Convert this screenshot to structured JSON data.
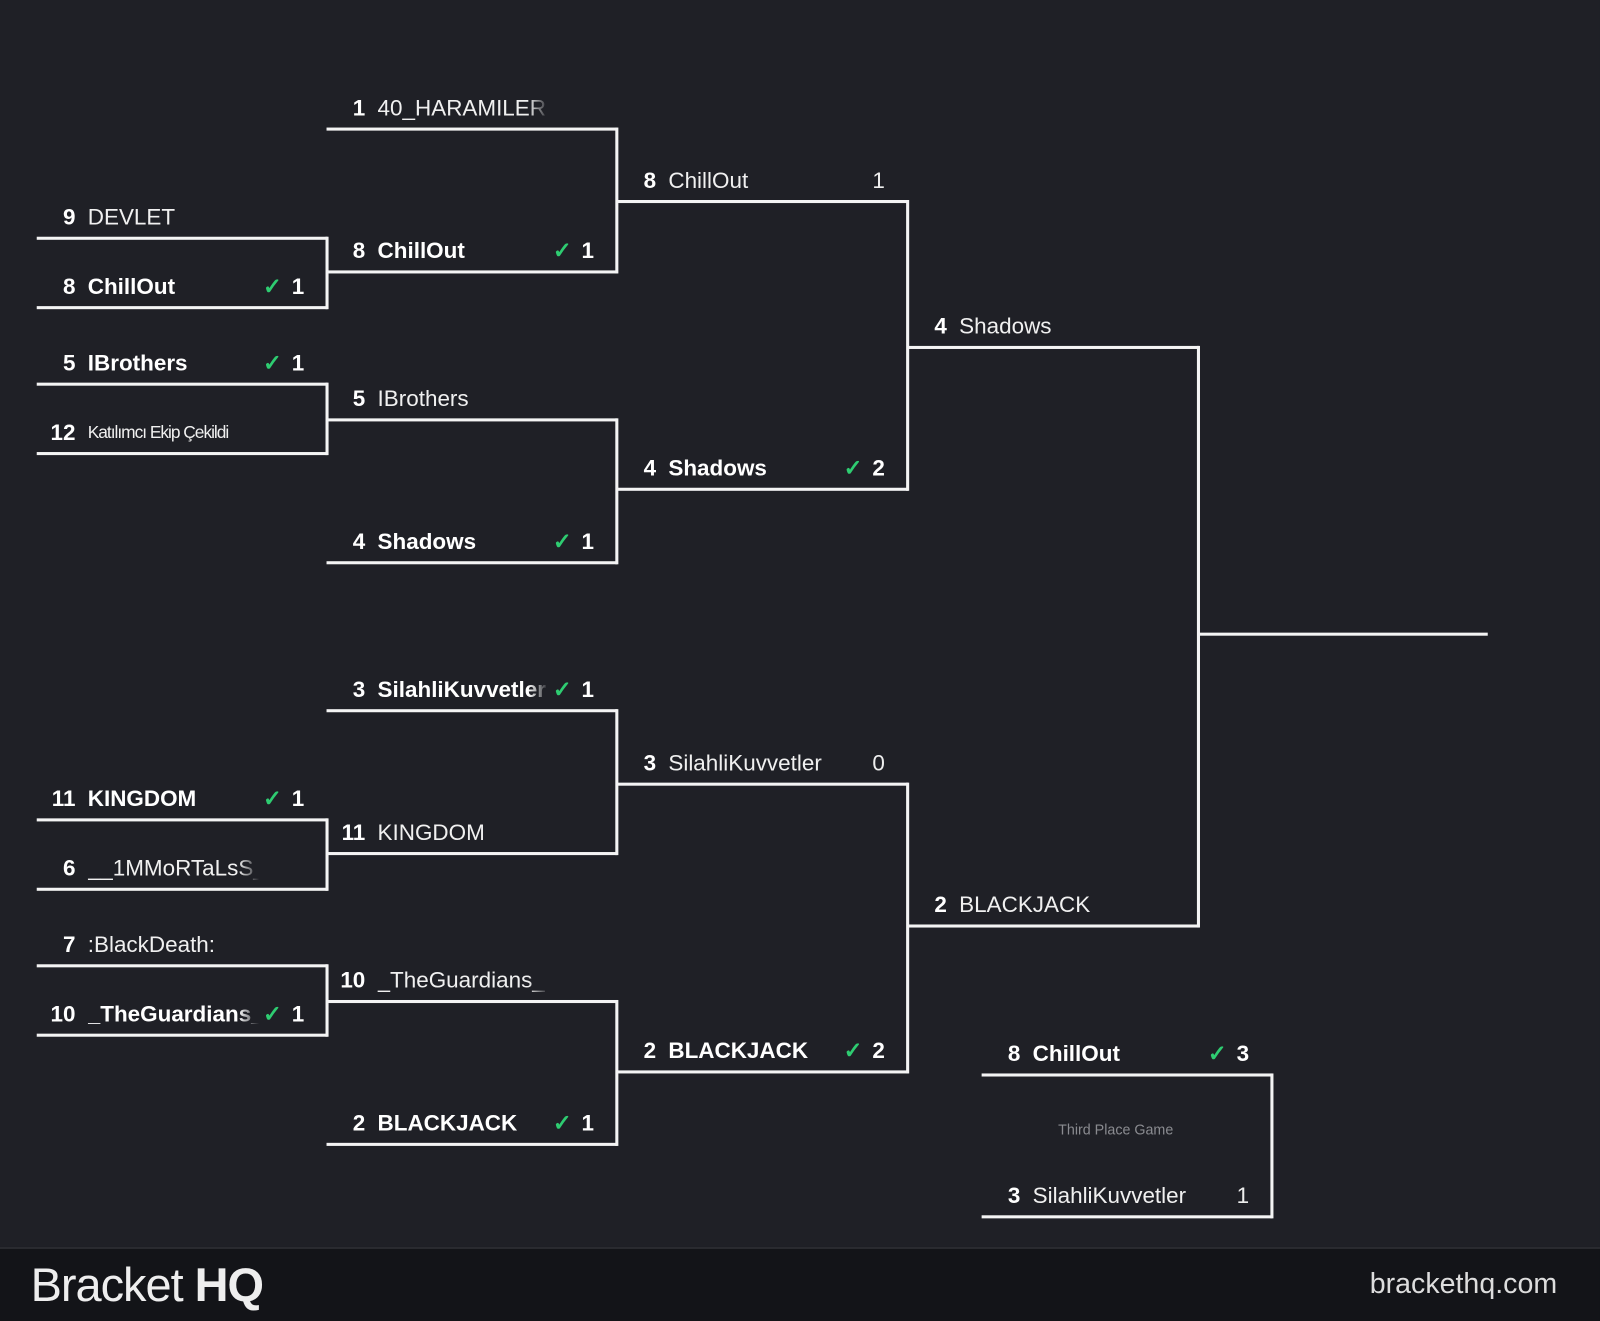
{
  "matches": [
    {
      "id": "r1-m1",
      "teams": [
        {
          "seed": "9",
          "name": "DEVLET"
        },
        {
          "seed": "8",
          "name": "ChillOut",
          "score": "1",
          "winner": true
        }
      ]
    },
    {
      "id": "r1-m2",
      "teams": [
        {
          "seed": "5",
          "name": "IBrothers",
          "score": "1",
          "winner": true
        },
        {
          "seed": "12",
          "name": "Katılımcı Ekip Çekildi",
          "small": true
        }
      ]
    },
    {
      "id": "r1-m3",
      "teams": [
        {
          "seed": "11",
          "name": "KINGDOM",
          "score": "1",
          "winner": true
        },
        {
          "seed": "6",
          "name": "__1MMoRTaLsS__"
        }
      ]
    },
    {
      "id": "r1-m4",
      "teams": [
        {
          "seed": "7",
          "name": ":BlackDeath:"
        },
        {
          "seed": "10",
          "name": "_TheGuardians_",
          "score": "1",
          "winner": true
        }
      ]
    },
    {
      "id": "r2-m1",
      "teams": [
        {
          "seed": "1",
          "name": "40_HARAMILER"
        },
        {
          "seed": "8",
          "name": "ChillOut",
          "score": "1",
          "winner": true
        }
      ]
    },
    {
      "id": "r2-m2",
      "teams": [
        {
          "seed": "5",
          "name": "IBrothers"
        },
        {
          "seed": "4",
          "name": "Shadows",
          "score": "1",
          "winner": true
        }
      ]
    },
    {
      "id": "r2-m3",
      "teams": [
        {
          "seed": "3",
          "name": "SilahliKuvvetler",
          "score": "1",
          "winner": true
        },
        {
          "seed": "11",
          "name": "KINGDOM"
        }
      ]
    },
    {
      "id": "r2-m4",
      "teams": [
        {
          "seed": "10",
          "name": "_TheGuardians_"
        },
        {
          "seed": "2",
          "name": "BLACKJACK",
          "score": "1",
          "winner": true
        }
      ]
    },
    {
      "id": "r3-m1",
      "teams": [
        {
          "seed": "8",
          "name": "ChillOut",
          "score": "1"
        },
        {
          "seed": "4",
          "name": "Shadows",
          "score": "2",
          "winner": true
        }
      ]
    },
    {
      "id": "r3-m2",
      "teams": [
        {
          "seed": "3",
          "name": "SilahliKuvvetler",
          "score": "0"
        },
        {
          "seed": "2",
          "name": "BLACKJACK",
          "score": "2",
          "winner": true
        }
      ]
    },
    {
      "id": "final",
      "teams": [
        {
          "seed": "4",
          "name": "Shadows"
        },
        {
          "seed": "2",
          "name": "BLACKJACK"
        }
      ]
    },
    {
      "id": "third-place",
      "caption": "Third Place Game",
      "teams": [
        {
          "seed": "8",
          "name": "ChillOut",
          "score": "3",
          "winner": true
        },
        {
          "seed": "3",
          "name": "SilahliKuvvetler",
          "score": "1"
        }
      ]
    }
  ],
  "check_icon": "check-icon",
  "colors": {
    "background": "#1f2026",
    "lines": "#f4f4f4",
    "check": "#2ecc71",
    "footer": "#131418"
  },
  "footer": {
    "brand_light": "Bracket",
    "brand_bold": "HQ",
    "site": "brackethq.com"
  }
}
